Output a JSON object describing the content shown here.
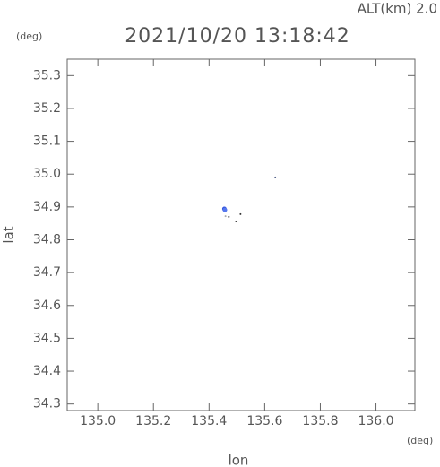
{
  "chart_data": {
    "type": "scatter",
    "subtitle": "ALT(km) 2.0",
    "title": "2021/10/20 13:18:42",
    "y_unit": "(deg)",
    "x_unit": "(deg)",
    "ylabel": "lat",
    "xlabel": "lon",
    "x": [
      135.455,
      135.457,
      135.638,
      135.471,
      135.497,
      135.513,
      135.459
    ],
    "y": [
      34.894,
      34.891,
      34.99,
      34.87,
      34.856,
      34.878,
      34.872
    ],
    "colors": [
      "#3355dd",
      "#5577ee",
      "#223366",
      "#333333",
      "#333333",
      "#333333",
      "#aaaaaa"
    ],
    "xlim": [
      134.89,
      136.14
    ],
    "ylim": [
      34.28,
      35.35
    ],
    "xticks": [
      {
        "value": 135,
        "label": "135.0"
      },
      135.2,
      135.4,
      135.6,
      135.8,
      {
        "value": 136,
        "label": "136.0"
      }
    ],
    "yticks": [
      34.3,
      34.4,
      34.5,
      34.6,
      34.7,
      34.8,
      34.9,
      {
        "value": 35,
        "label": "35.0"
      },
      35.1,
      35.2,
      35.3
    ]
  }
}
